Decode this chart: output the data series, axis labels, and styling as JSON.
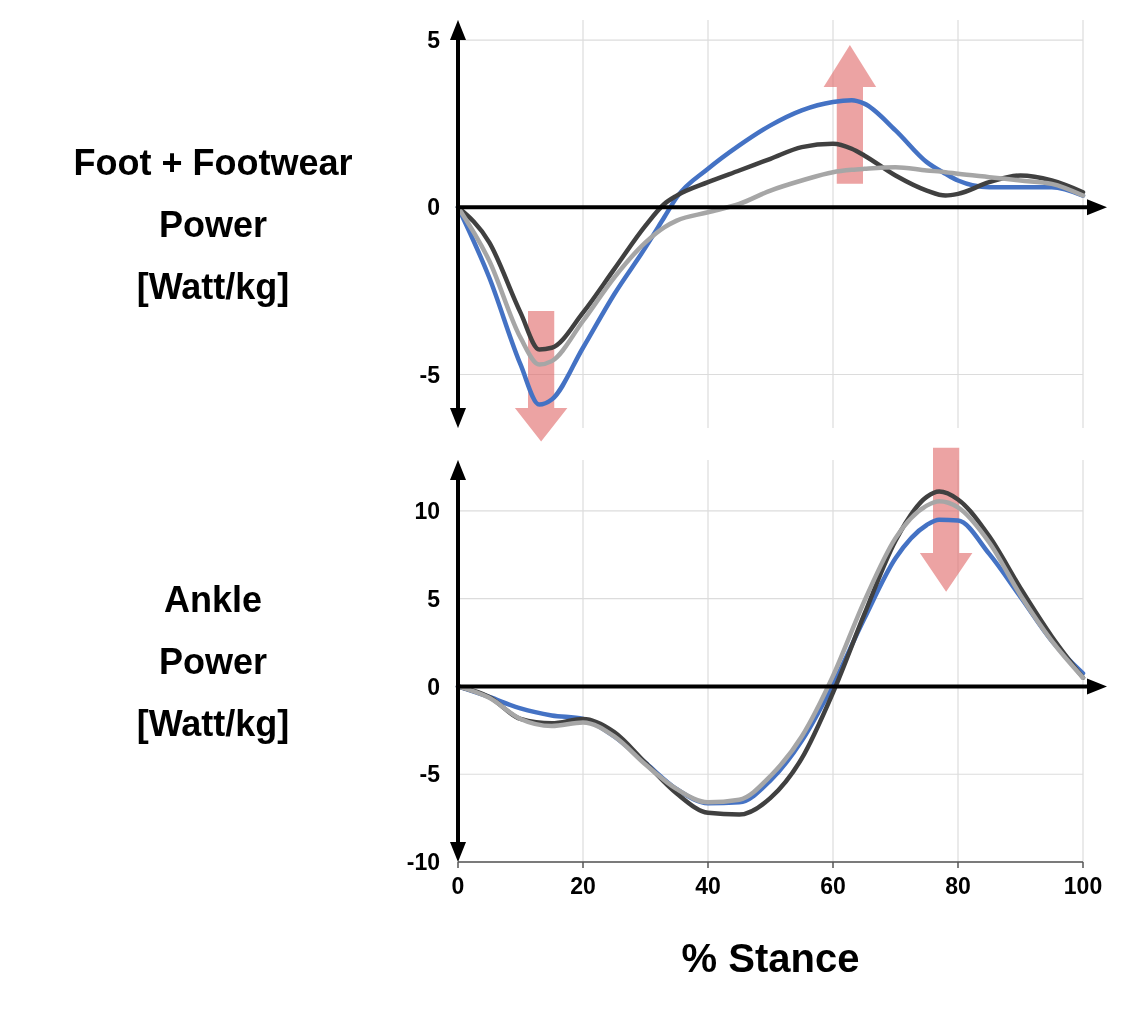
{
  "chart_data": [
    {
      "type": "line",
      "ylabel": "Foot + Footwear\nPower\n[Watt/kg]",
      "x": [
        0,
        5,
        10,
        13,
        15,
        20,
        25,
        30,
        33,
        35,
        40,
        45,
        50,
        55,
        60,
        63,
        65,
        70,
        75,
        78,
        80,
        85,
        90,
        95,
        100
      ],
      "xlim": [
        0,
        100
      ],
      "xticks": [
        0,
        20,
        40,
        60,
        80,
        100
      ],
      "ylim": [
        -6.6,
        5.6
      ],
      "yticks": [
        -5,
        0,
        5
      ],
      "grid": true,
      "tick_labels": "y",
      "series": [
        {
          "color": "#4472c4",
          "values": [
            0,
            -2.1,
            -4.7,
            -5.9,
            -5.75,
            -4.2,
            -2.6,
            -1.2,
            -0.3,
            0.3,
            1.15,
            1.85,
            2.45,
            2.9,
            3.15,
            3.2,
            3.1,
            2.3,
            1.35,
            1.0,
            0.8,
            0.6,
            0.6,
            0.6,
            0.35
          ]
        },
        {
          "color": "#404040",
          "values": [
            0,
            -1.05,
            -3.15,
            -4.25,
            -4.2,
            -3.15,
            -1.85,
            -0.55,
            0.1,
            0.35,
            0.75,
            1.1,
            1.45,
            1.8,
            1.9,
            1.75,
            1.55,
            0.95,
            0.5,
            0.35,
            0.4,
            0.75,
            0.95,
            0.8,
            0.45
          ]
        },
        {
          "color": "#a6a6a6",
          "values": [
            0,
            -1.6,
            -3.9,
            -4.7,
            -4.6,
            -3.4,
            -2.1,
            -1.05,
            -0.6,
            -0.4,
            -0.15,
            0.1,
            0.5,
            0.8,
            1.05,
            1.12,
            1.15,
            1.2,
            1.1,
            1.05,
            1.0,
            0.9,
            0.8,
            0.7,
            0.35
          ]
        }
      ]
    },
    {
      "type": "line",
      "ylabel": "Ankle\nPower\n[Watt/kg]",
      "xlabel": "% Stance",
      "x": [
        0,
        5,
        10,
        15,
        20,
        25,
        30,
        35,
        40,
        45,
        50,
        55,
        60,
        65,
        70,
        75,
        77,
        80,
        85,
        90,
        95,
        100
      ],
      "xlim": [
        0,
        100
      ],
      "xticks": [
        0,
        20,
        40,
        60,
        80,
        100
      ],
      "ylim": [
        -10,
        12.9
      ],
      "yticks": [
        -10,
        -5,
        0,
        5,
        10
      ],
      "grid": true,
      "series": [
        {
          "color": "#4472c4",
          "values": [
            0,
            -0.6,
            -1.25,
            -1.65,
            -1.85,
            -2.85,
            -4.35,
            -5.85,
            -6.65,
            -6.6,
            -5.35,
            -3.1,
            0.1,
            3.85,
            7.3,
            9.2,
            9.5,
            9.45,
            7.55,
            5.1,
            2.6,
            0.75
          ]
        },
        {
          "color": "#404040",
          "values": [
            0,
            -0.6,
            -1.85,
            -2.1,
            -1.85,
            -2.6,
            -4.35,
            -6.1,
            -7.2,
            -7.3,
            -6.35,
            -4.1,
            -0.35,
            4.1,
            8.3,
            10.8,
            11.1,
            10.65,
            8.55,
            5.6,
            2.85,
            0.5
          ]
        },
        {
          "color": "#a6a6a6",
          "values": [
            0,
            -0.65,
            -1.85,
            -2.25,
            -2.05,
            -2.85,
            -4.45,
            -5.85,
            -6.6,
            -6.45,
            -5.1,
            -2.85,
            0.6,
            4.85,
            8.45,
            10.3,
            10.55,
            10.2,
            8.2,
            5.2,
            2.6,
            0.5
          ]
        }
      ]
    }
  ]
}
